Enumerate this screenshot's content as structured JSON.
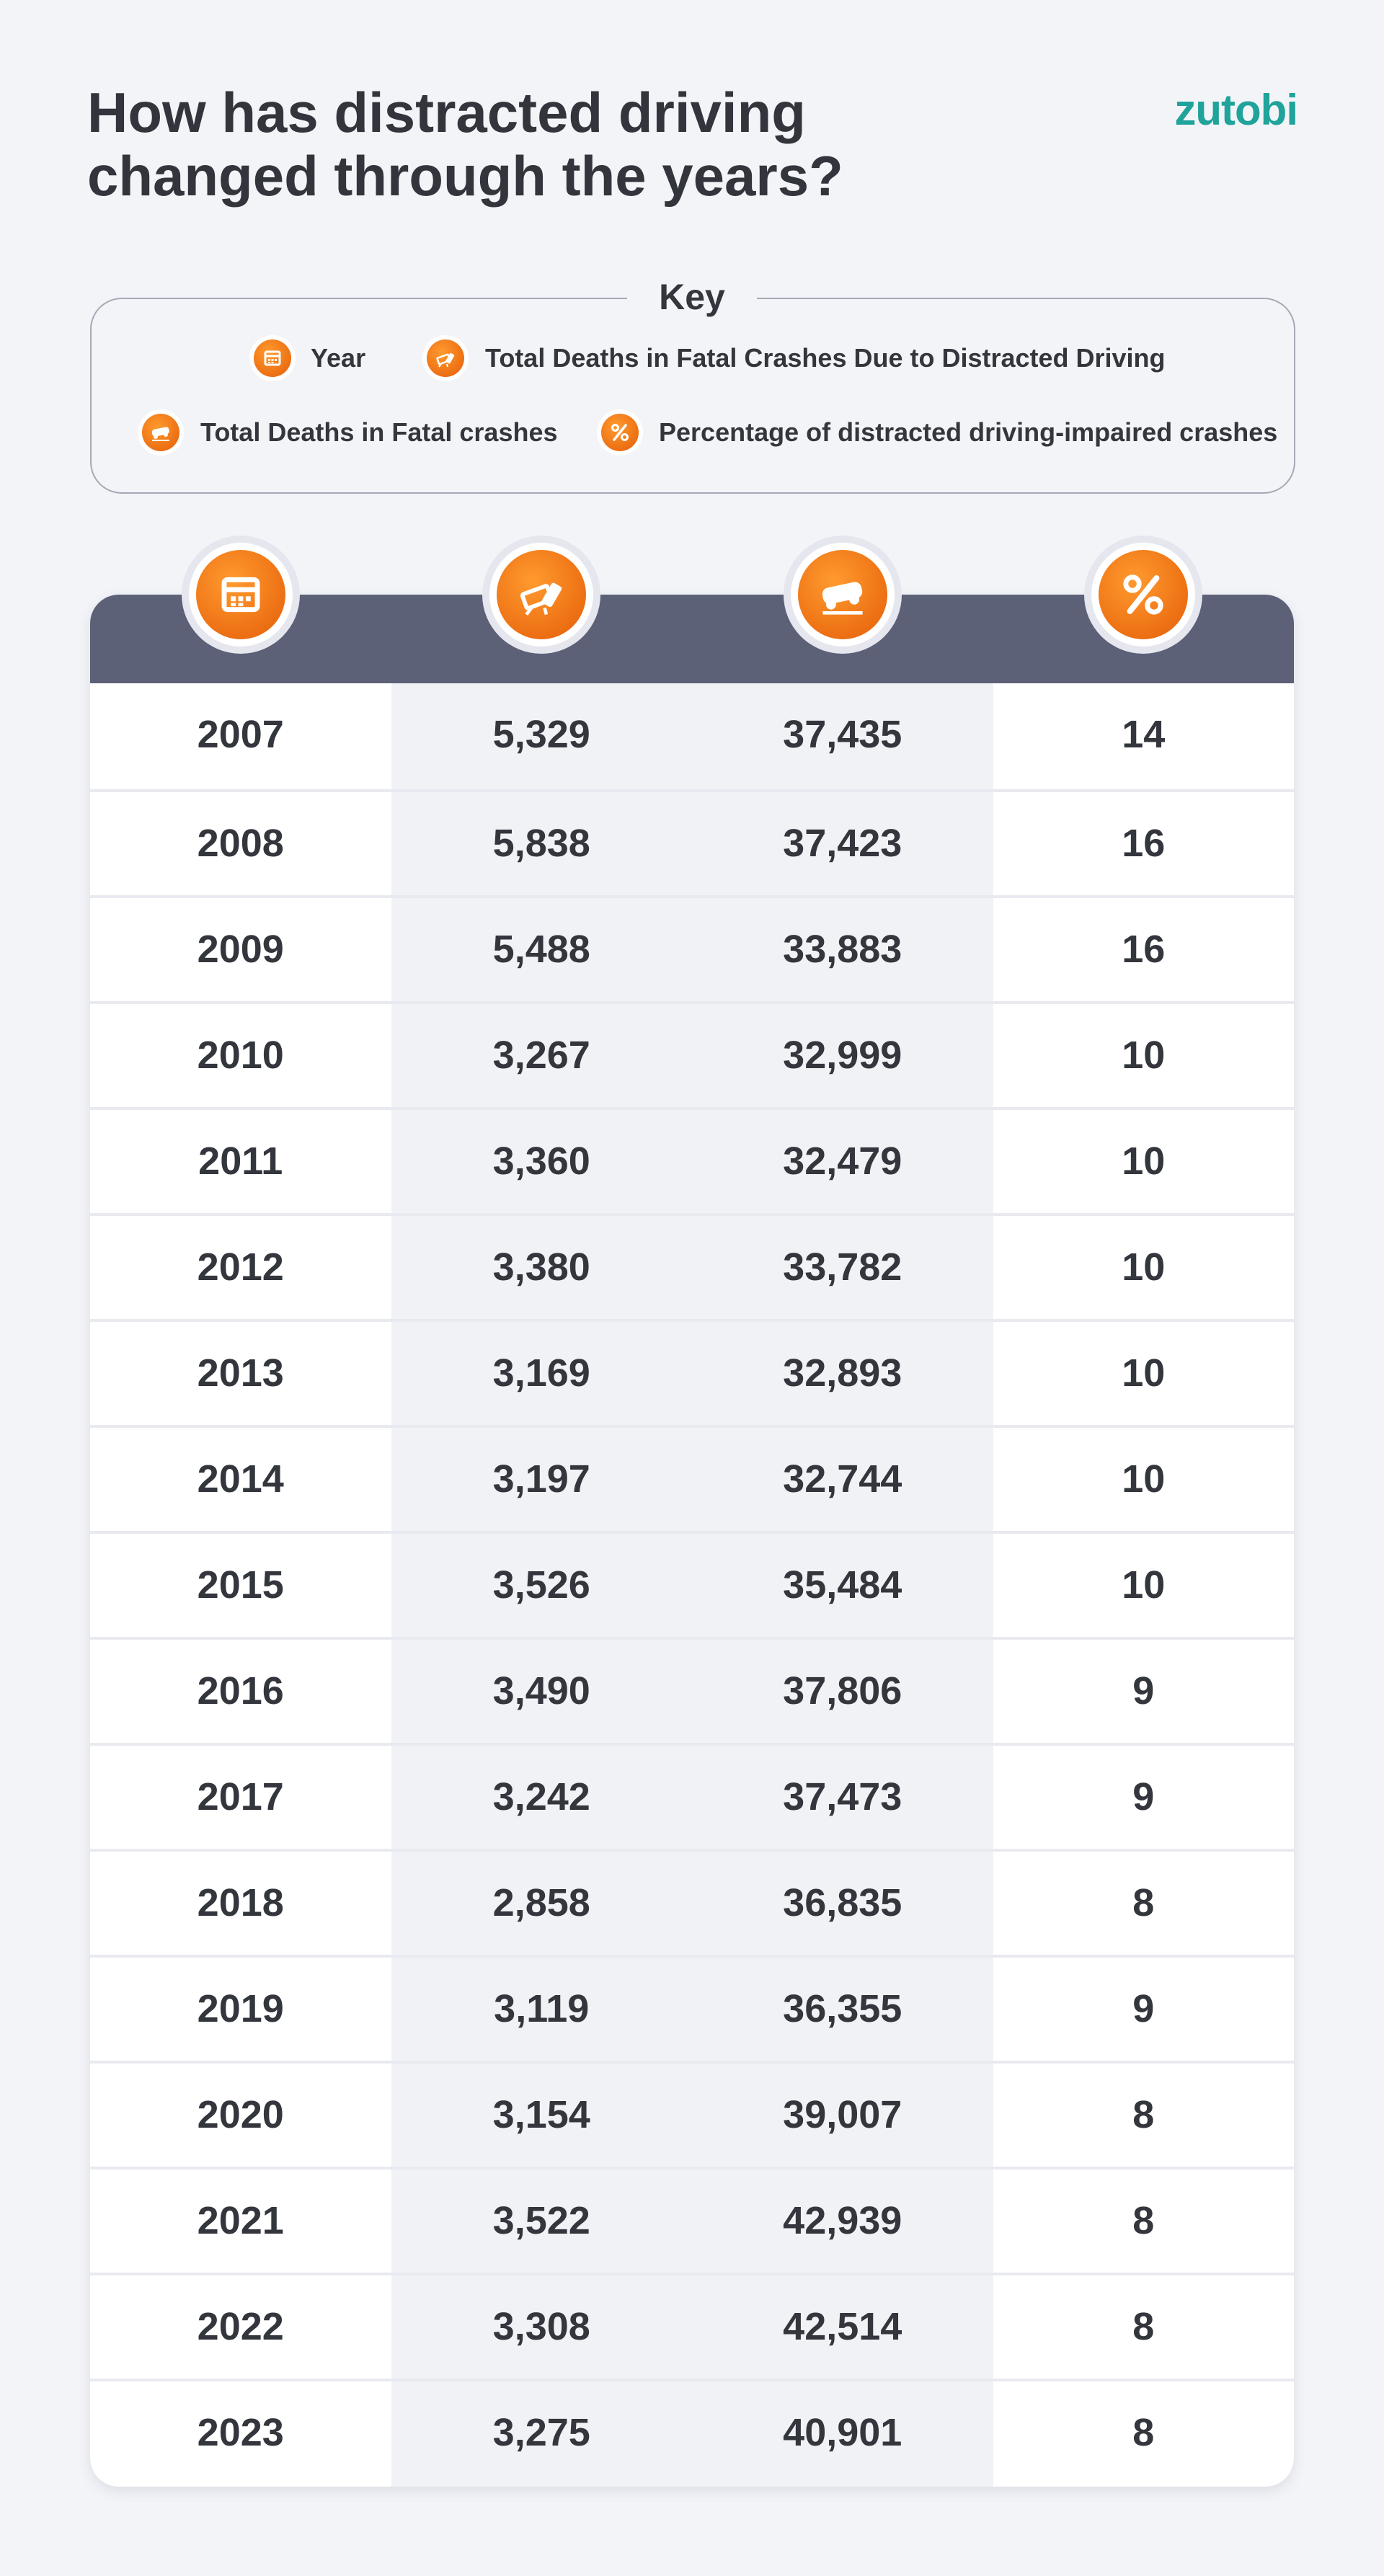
{
  "header": {
    "title_lines": [
      "How has distracted driving",
      "changed through the years?"
    ],
    "brand": "zutobi"
  },
  "key": {
    "title": "Key",
    "items": [
      "Year",
      "Total Deaths in Fatal Crashes Due to Distracted Driving",
      "Total Deaths in Fatal crashes",
      "Percentage of distracted driving-impaired crashes"
    ]
  },
  "table": {
    "rows": [
      [
        "2007",
        "5,329",
        "37,435",
        "14"
      ],
      [
        "2008",
        "5,838",
        "37,423",
        "16"
      ],
      [
        "2009",
        "5,488",
        "33,883",
        "16"
      ],
      [
        "2010",
        "3,267",
        "32,999",
        "10"
      ],
      [
        "2011",
        "3,360",
        "32,479",
        "10"
      ],
      [
        "2012",
        "3,380",
        "33,782",
        "10"
      ],
      [
        "2013",
        "3,169",
        "32,893",
        "10"
      ],
      [
        "2014",
        "3,197",
        "32,744",
        "10"
      ],
      [
        "2015",
        "3,526",
        "35,484",
        "10"
      ],
      [
        "2016",
        "3,490",
        "37,806",
        "9"
      ],
      [
        "2017",
        "3,242",
        "37,473",
        "9"
      ],
      [
        "2018",
        "2,858",
        "36,835",
        "8"
      ],
      [
        "2019",
        "3,119",
        "36,355",
        "9"
      ],
      [
        "2020",
        "3,154",
        "39,007",
        "8"
      ],
      [
        "2021",
        "3,522",
        "42,939",
        "8"
      ],
      [
        "2022",
        "3,308",
        "42,514",
        "8"
      ],
      [
        "2023",
        "3,275",
        "40,901",
        "8"
      ]
    ]
  }
}
